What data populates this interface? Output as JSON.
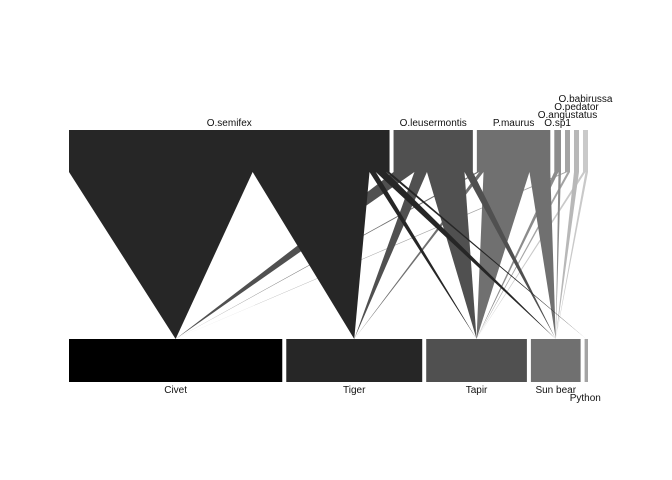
{
  "chart_data": {
    "type": "bipartite-web",
    "title": "",
    "higher_level": [
      {
        "name": "O.semifex",
        "color": "#262626"
      },
      {
        "name": "O.leusermontis",
        "color": "#505050"
      },
      {
        "name": "P.maurus",
        "color": "#707070"
      },
      {
        "name": "O.sp1",
        "color": "#8c8c8c"
      },
      {
        "name": "O.angustatus",
        "color": "#a4a4a4"
      },
      {
        "name": "O.pedator",
        "color": "#b8b8b8"
      },
      {
        "name": "O.babirussa",
        "color": "#c9c9c9"
      }
    ],
    "lower_level": [
      {
        "name": "Civet",
        "color": "#000000"
      },
      {
        "name": "Tiger",
        "color": "#262626"
      },
      {
        "name": "Tapir",
        "color": "#505050"
      },
      {
        "name": "Sun bear",
        "color": "#707070"
      },
      {
        "name": "Python",
        "color": "#a4a4a4"
      }
    ],
    "interactions": [
      {
        "from": "O.semifex",
        "to": "Civet",
        "weight": 44
      },
      {
        "from": "O.semifex",
        "to": "Tiger",
        "weight": 28
      },
      {
        "from": "O.semifex",
        "to": "Tapir",
        "weight": 1.5
      },
      {
        "from": "O.semifex",
        "to": "Sun bear",
        "weight": 2.5
      },
      {
        "from": "O.semifex",
        "to": "Python",
        "weight": 0.8
      },
      {
        "from": "O.leusermontis",
        "to": "Civet",
        "weight": 5
      },
      {
        "from": "O.leusermontis",
        "to": "Tiger",
        "weight": 3
      },
      {
        "from": "O.leusermontis",
        "to": "Tapir",
        "weight": 9
      },
      {
        "from": "O.leusermontis",
        "to": "Sun bear",
        "weight": 2
      },
      {
        "from": "P.maurus",
        "to": "Civet",
        "weight": 0.6
      },
      {
        "from": "P.maurus",
        "to": "Tiger",
        "weight": 1
      },
      {
        "from": "P.maurus",
        "to": "Tapir",
        "weight": 11
      },
      {
        "from": "P.maurus",
        "to": "Sun bear",
        "weight": 5
      },
      {
        "from": "O.sp1",
        "to": "Tapir",
        "weight": 1
      },
      {
        "from": "O.sp1",
        "to": "Sun bear",
        "weight": 0.6
      },
      {
        "from": "O.angustatus",
        "to": "Civet",
        "weight": 0.6
      },
      {
        "from": "O.angustatus",
        "to": "Tapir",
        "weight": 0.6
      },
      {
        "from": "O.pedator",
        "to": "Sun bear",
        "weight": 1
      },
      {
        "from": "O.babirussa",
        "to": "Tapir",
        "weight": 0.6
      },
      {
        "from": "O.babirussa",
        "to": "Sun bear",
        "weight": 0.6
      }
    ]
  }
}
